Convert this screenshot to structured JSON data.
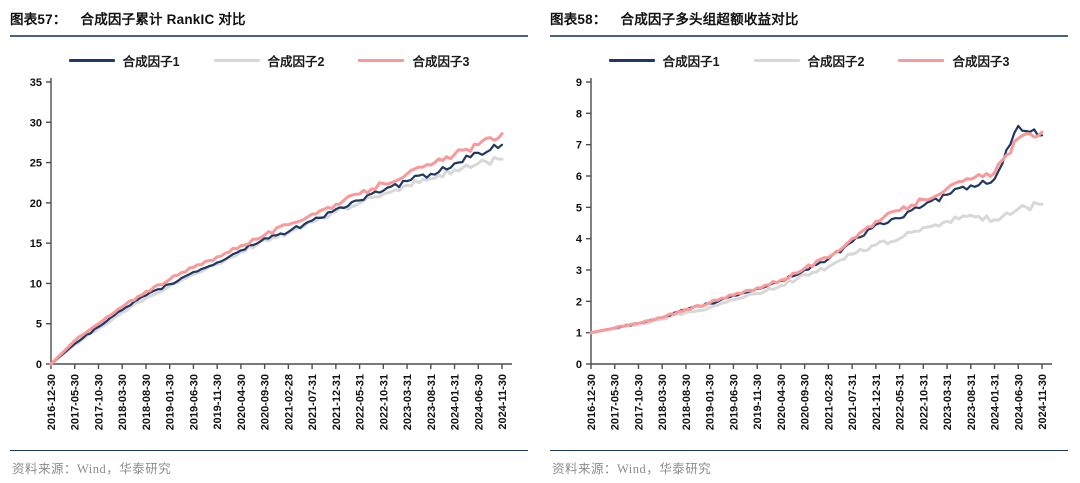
{
  "panels": [
    {
      "figure_label": "图表57：",
      "title": "合成因子累计 RankIC 对比",
      "source": "资料来源：Wind，华泰研究"
    },
    {
      "figure_label": "图表58：",
      "title": "合成因子多头组超额收益对比",
      "source": "资料来源：Wind，华泰研究"
    }
  ],
  "colors": {
    "series1": "#1f3864",
    "series2": "#d8d8d8",
    "series3": "#f9999a",
    "title_rule": "#4a6285",
    "footer_rule": "#1f3864",
    "axis": "#4d4d4d",
    "tick_label": "#111111",
    "source_text": "#8c8c8c"
  },
  "chart_data": [
    {
      "type": "line",
      "title": "合成因子累计 RankIC 对比",
      "xlabel": "",
      "ylabel": "",
      "ylim": [
        0,
        35
      ],
      "ytick_step": 5,
      "grid": false,
      "legend_position": "top",
      "categories": [
        "2016-12-30",
        "2017-05-30",
        "2017-10-30",
        "2018-03-30",
        "2018-08-30",
        "2019-01-30",
        "2019-06-30",
        "2019-11-30",
        "2020-04-30",
        "2020-09-30",
        "2021-02-28",
        "2021-07-31",
        "2021-12-31",
        "2022-05-31",
        "2022-10-31",
        "2023-03-31",
        "2023-08-31",
        "2024-01-31",
        "2024-06-30",
        "2024-11-30"
      ],
      "series": [
        {
          "name": "合成因子1",
          "color": "#1f3864",
          "stroke_width": 2.2,
          "z": 2,
          "values": [
            0,
            2.5,
            4.6,
            6.7,
            8.5,
            9.9,
            11.4,
            12.6,
            14.1,
            15.6,
            16.4,
            17.8,
            19.2,
            20.3,
            21.5,
            22.7,
            23.6,
            24.9,
            26.2,
            27.2
          ]
        },
        {
          "name": "合成因子2",
          "color": "#d8d8d8",
          "stroke_width": 3,
          "z": 1,
          "values": [
            0,
            2.4,
            4.4,
            6.4,
            8.2,
            9.7,
            11.1,
            12.4,
            13.9,
            15.4,
            16.3,
            17.6,
            18.9,
            20.0,
            21.1,
            22.2,
            23.0,
            24.1,
            24.9,
            25.4
          ]
        },
        {
          "name": "合成因子3",
          "color": "#f9999a",
          "stroke_width": 3,
          "z": 3,
          "values": [
            0,
            2.9,
            5.0,
            7.1,
            9.0,
            10.5,
            12.0,
            13.3,
            14.7,
            16.0,
            17.3,
            18.6,
            19.8,
            21.1,
            22.4,
            23.6,
            24.7,
            26.0,
            27.2,
            28.6
          ]
        }
      ]
    },
    {
      "type": "line",
      "title": "合成因子多头组超额收益对比",
      "xlabel": "",
      "ylabel": "",
      "ylim": [
        0,
        9
      ],
      "ytick_step": 1,
      "grid": false,
      "legend_position": "top",
      "categories": [
        "2016-12-30",
        "2017-05-30",
        "2017-10-30",
        "2018-03-30",
        "2018-08-30",
        "2019-01-30",
        "2019-06-30",
        "2019-11-30",
        "2020-04-30",
        "2020-09-30",
        "2021-02-28",
        "2021-07-31",
        "2021-12-31",
        "2022-05-31",
        "2022-10-31",
        "2023-03-31",
        "2023-08-31",
        "2024-01-31",
        "2024-06-30",
        "2024-11-30"
      ],
      "series": [
        {
          "name": "合成因子1",
          "color": "#1f3864",
          "stroke_width": 2.2,
          "z": 2,
          "values": [
            1.0,
            1.15,
            1.3,
            1.47,
            1.73,
            1.93,
            2.18,
            2.4,
            2.65,
            3.0,
            3.35,
            3.9,
            4.45,
            4.65,
            5.05,
            5.4,
            5.7,
            5.9,
            7.6,
            7.3
          ]
        },
        {
          "name": "合成因子2",
          "color": "#d8d8d8",
          "stroke_width": 3,
          "z": 1,
          "values": [
            1.0,
            1.13,
            1.27,
            1.44,
            1.65,
            1.8,
            2.05,
            2.25,
            2.5,
            2.85,
            3.1,
            3.5,
            3.8,
            4.0,
            4.35,
            4.55,
            4.75,
            4.6,
            4.95,
            5.1
          ]
        },
        {
          "name": "合成因子3",
          "color": "#f9999a",
          "stroke_width": 3,
          "z": 3,
          "values": [
            1.0,
            1.15,
            1.3,
            1.48,
            1.75,
            1.95,
            2.2,
            2.43,
            2.68,
            3.05,
            3.4,
            4.0,
            4.55,
            4.9,
            5.25,
            5.6,
            5.9,
            6.1,
            7.2,
            7.4
          ]
        }
      ]
    }
  ]
}
